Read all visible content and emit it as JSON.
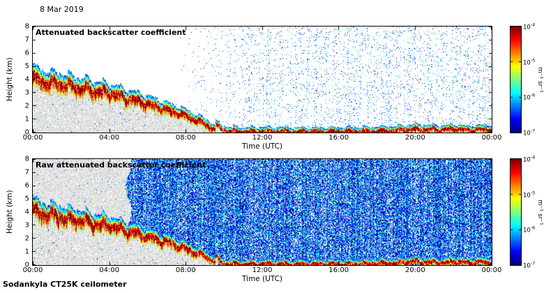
{
  "title": "8 Mar 2019",
  "footer": "Sodankyla CT25K ceilometer",
  "colorbar": {
    "ticks": [
      {
        "base": "10",
        "exp": "-4"
      },
      {
        "base": "10",
        "exp": "-5"
      },
      {
        "base": "10",
        "exp": "-6"
      },
      {
        "base": "10",
        "exp": "-7"
      }
    ],
    "unit_label": "m⁻¹ sr⁻¹"
  },
  "panels": [
    {
      "label": "Attenuated backscatter coefficient",
      "xlabel": "Time (UTC)",
      "ylabel": "Height (km)",
      "xticks": [
        "00:00",
        "04:00",
        "08:00",
        "12:00",
        "16:00",
        "20:00",
        "00:00"
      ],
      "yticks": [
        0,
        1,
        2,
        3,
        4,
        5,
        6,
        7,
        8
      ]
    },
    {
      "label": "Raw attenuated backscatter coefficient",
      "xlabel": "Time (UTC)",
      "ylabel": "Height (km)",
      "xticks": [
        "00:00",
        "04:00",
        "08:00",
        "12:00",
        "16:00",
        "20:00",
        "00:00"
      ],
      "yticks": [
        0,
        1,
        2,
        3,
        4,
        5,
        6,
        7,
        8
      ]
    }
  ],
  "chart_data": [
    {
      "type": "heatmap",
      "title": "Attenuated backscatter coefficient",
      "xlabel": "Time (UTC)",
      "ylabel": "Height (km)",
      "x_range_hours": [
        0,
        24
      ],
      "xtick_labels": [
        "00:00",
        "04:00",
        "08:00",
        "12:00",
        "16:00",
        "20:00",
        "00:00"
      ],
      "y_range_km": [
        0,
        8
      ],
      "ytick_values": [
        0,
        1,
        2,
        3,
        4,
        5,
        6,
        7,
        8
      ],
      "colormap": "jet",
      "color_scale": "log10",
      "clim": [
        1e-07,
        0.0001
      ],
      "colorbar_tick_values": [
        0.0001,
        1e-05,
        1e-06,
        1e-07
      ],
      "colorbar_label": "m⁻¹ sr⁻¹",
      "features": {
        "descending_layer": {
          "description": "Strong backscatter layer (core ~1e-5 to 1e-4 m^-1 sr^-1, jagged fall-streak top) descending from ~4.7 km at 00:00 UTC to the surface by ~09:30 UTC, then persisting as a shallow intense surface layer (~0.3-0.6 km deep) through 24:00 with small humps near 20:00-23:00",
          "top_km_by_hour": [
            [
              0,
              4.75
            ],
            [
              0.5,
              4.55
            ],
            [
              1,
              4.4
            ],
            [
              1.5,
              4.25
            ],
            [
              2,
              4.1
            ],
            [
              2.5,
              3.95
            ],
            [
              3,
              3.8
            ],
            [
              3.5,
              3.65
            ],
            [
              4,
              3.5
            ],
            [
              4.5,
              3.3
            ],
            [
              5,
              3.05
            ],
            [
              5.5,
              2.85
            ],
            [
              6,
              2.6
            ],
            [
              6.5,
              2.4
            ],
            [
              7,
              2.15
            ],
            [
              7.5,
              1.9
            ],
            [
              8,
              1.6
            ],
            [
              8.5,
              1.3
            ],
            [
              9,
              0.95
            ],
            [
              9.5,
              0.5
            ],
            [
              10,
              0.35
            ],
            [
              11,
              0.3
            ],
            [
              12,
              0.32
            ],
            [
              13,
              0.3
            ],
            [
              14,
              0.28
            ],
            [
              15,
              0.3
            ],
            [
              16,
              0.3
            ],
            [
              17,
              0.32
            ],
            [
              18,
              0.35
            ],
            [
              19,
              0.4
            ],
            [
              20,
              0.55
            ],
            [
              20.5,
              0.45
            ],
            [
              21,
              0.5
            ],
            [
              21.5,
              0.4
            ],
            [
              22,
              0.55
            ],
            [
              22.5,
              0.45
            ],
            [
              23,
              0.4
            ],
            [
              23.5,
              0.5
            ],
            [
              24,
              0.45
            ]
          ],
          "peak_backscatter_log10": -4.0
        },
        "subcloud_region": {
          "description": "Weak gray-shaded backscatter below the descending layer",
          "time_range_hours": [
            0,
            9.7
          ]
        },
        "upper_noise": {
          "description": "Sparse blue/cyan speckle above the layer, appearing after ~07:30 and densest from ~12:00 to 24:00",
          "start_hour_utc": 7.3
        }
      }
    },
    {
      "type": "heatmap",
      "title": "Raw attenuated backscatter coefficient",
      "xlabel": "Time (UTC)",
      "ylabel": "Height (km)",
      "x_range_hours": [
        0,
        24
      ],
      "xtick_labels": [
        "00:00",
        "04:00",
        "08:00",
        "12:00",
        "16:00",
        "20:00",
        "00:00"
      ],
      "y_range_km": [
        0,
        8
      ],
      "ytick_values": [
        0,
        1,
        2,
        3,
        4,
        5,
        6,
        7,
        8
      ],
      "colormap": "jet",
      "color_scale": "log10",
      "clim": [
        1e-07,
        0.0001
      ],
      "colorbar_tick_values": [
        0.0001,
        1e-05,
        1e-06,
        1e-07
      ],
      "colorbar_label": "m⁻¹ sr⁻¹",
      "features": {
        "descending_layer": {
          "description": "Same descending layer and intense surface layer as the calibrated panel"
        },
        "gray_region": {
          "description": "Gray-shaded weak raw signal during the first hours (above the layer) and below the layer until it reaches the surface",
          "time_range_hours": [
            0,
            5.0
          ]
        },
        "background_noise": {
          "description": "Dense blue speckle noise filling the panel after ~05:00 UTC at all heights above the layer",
          "start_hour_utc": 5.0
        }
      }
    }
  ]
}
